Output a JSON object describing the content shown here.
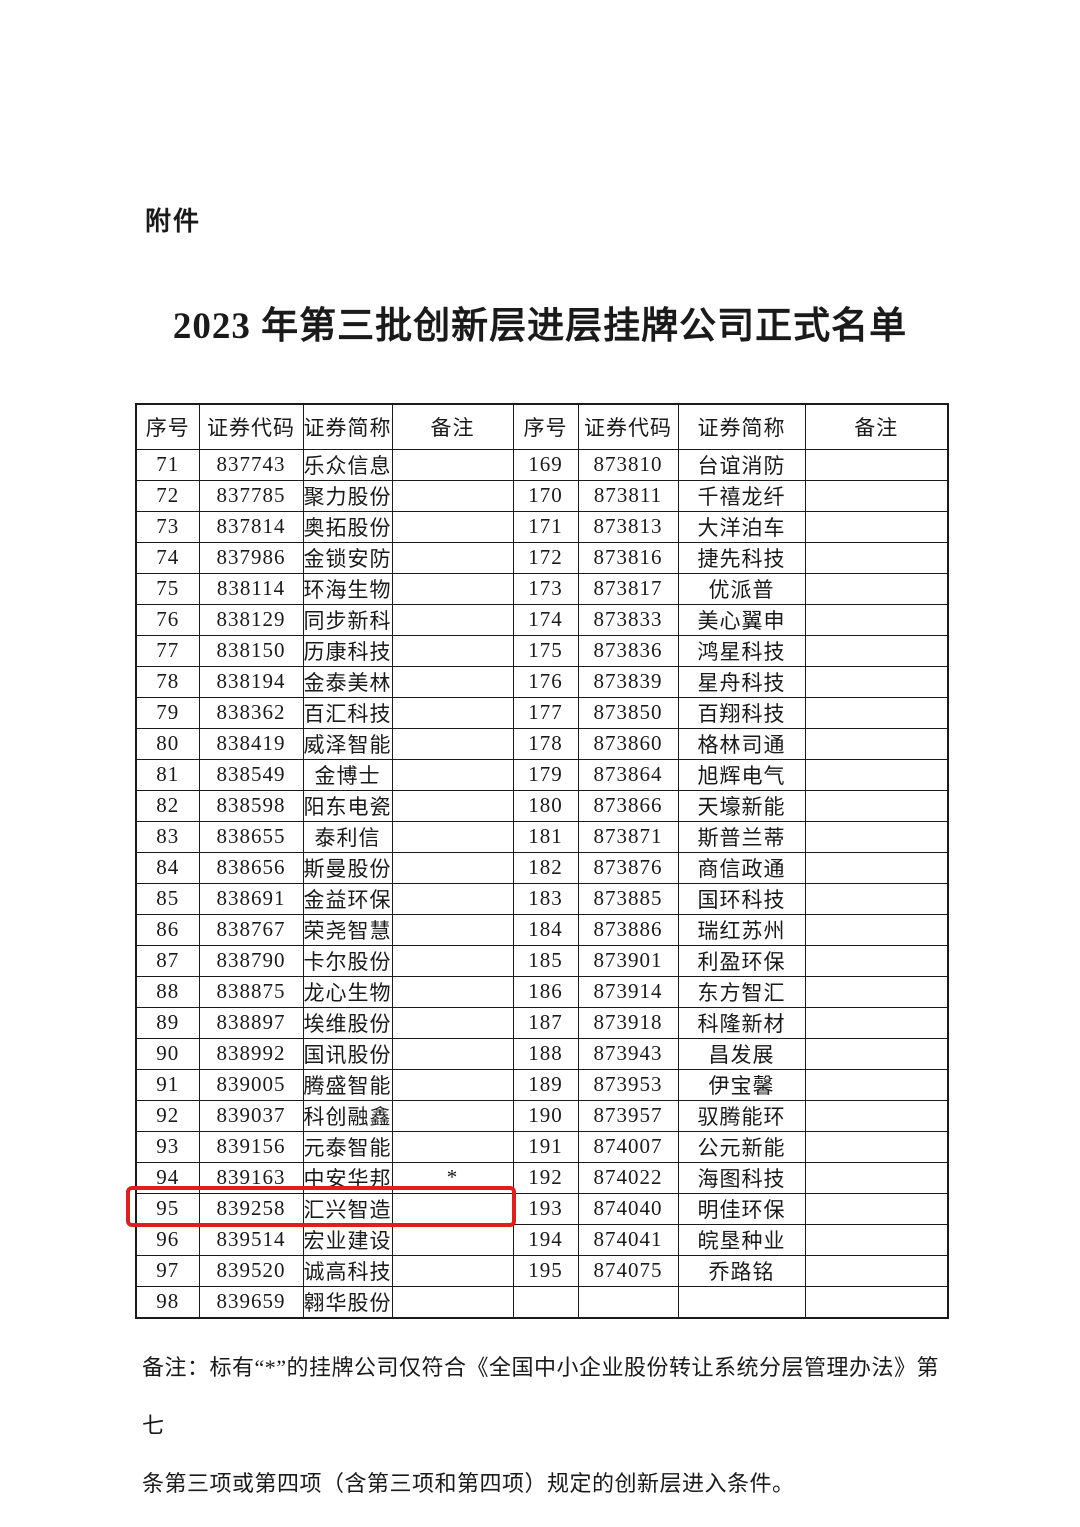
{
  "page": {
    "background": "#ffffff"
  },
  "header": {
    "attachment_label": "附件",
    "title": "2023 年第三批创新层进层挂牌公司正式名单"
  },
  "table": {
    "headers": [
      "序号",
      "证券代码",
      "证券简称",
      "备注",
      "序号",
      "证券代码",
      "证券简称",
      "备注"
    ],
    "rows": [
      [
        "71",
        "837743",
        "乐众信息",
        "",
        "169",
        "873810",
        "台谊消防",
        ""
      ],
      [
        "72",
        "837785",
        "聚力股份",
        "",
        "170",
        "873811",
        "千禧龙纤",
        ""
      ],
      [
        "73",
        "837814",
        "奥拓股份",
        "",
        "171",
        "873813",
        "大洋泊车",
        ""
      ],
      [
        "74",
        "837986",
        "金锁安防",
        "",
        "172",
        "873816",
        "捷先科技",
        ""
      ],
      [
        "75",
        "838114",
        "环海生物",
        "",
        "173",
        "873817",
        "优派普",
        ""
      ],
      [
        "76",
        "838129",
        "同步新科",
        "",
        "174",
        "873833",
        "美心翼申",
        ""
      ],
      [
        "77",
        "838150",
        "历康科技",
        "",
        "175",
        "873836",
        "鸿星科技",
        ""
      ],
      [
        "78",
        "838194",
        "金泰美林",
        "",
        "176",
        "873839",
        "星舟科技",
        ""
      ],
      [
        "79",
        "838362",
        "百汇科技",
        "",
        "177",
        "873850",
        "百翔科技",
        ""
      ],
      [
        "80",
        "838419",
        "威泽智能",
        "",
        "178",
        "873860",
        "格林司通",
        ""
      ],
      [
        "81",
        "838549",
        "金博士",
        "",
        "179",
        "873864",
        "旭辉电气",
        ""
      ],
      [
        "82",
        "838598",
        "阳东电瓷",
        "",
        "180",
        "873866",
        "天壕新能",
        ""
      ],
      [
        "83",
        "838655",
        "泰利信",
        "",
        "181",
        "873871",
        "斯普兰蒂",
        ""
      ],
      [
        "84",
        "838656",
        "斯曼股份",
        "",
        "182",
        "873876",
        "商信政通",
        ""
      ],
      [
        "85",
        "838691",
        "金益环保",
        "",
        "183",
        "873885",
        "国环科技",
        ""
      ],
      [
        "86",
        "838767",
        "荣尧智慧",
        "",
        "184",
        "873886",
        "瑞红苏州",
        ""
      ],
      [
        "87",
        "838790",
        "卡尔股份",
        "",
        "185",
        "873901",
        "利盈环保",
        ""
      ],
      [
        "88",
        "838875",
        "龙心生物",
        "",
        "186",
        "873914",
        "东方智汇",
        ""
      ],
      [
        "89",
        "838897",
        "埃维股份",
        "",
        "187",
        "873918",
        "科隆新材",
        ""
      ],
      [
        "90",
        "838992",
        "国讯股份",
        "",
        "188",
        "873943",
        "昌发展",
        ""
      ],
      [
        "91",
        "839005",
        "腾盛智能",
        "",
        "189",
        "873953",
        "伊宝馨",
        ""
      ],
      [
        "92",
        "839037",
        "科创融鑫",
        "",
        "190",
        "873957",
        "驭腾能环",
        ""
      ],
      [
        "93",
        "839156",
        "元泰智能",
        "",
        "191",
        "874007",
        "公元新能",
        ""
      ],
      [
        "94",
        "839163",
        "中安华邦",
        "*",
        "192",
        "874022",
        "海图科技",
        ""
      ],
      [
        "95",
        "839258",
        "汇兴智造",
        "",
        "193",
        "874040",
        "明佳环保",
        ""
      ],
      [
        "96",
        "839514",
        "宏业建设",
        "",
        "194",
        "874041",
        "皖垦种业",
        ""
      ],
      [
        "97",
        "839520",
        "诚高科技",
        "",
        "195",
        "874075",
        "乔路铭",
        ""
      ],
      [
        "98",
        "839659",
        "翱华股份",
        "",
        "",
        "",
        "",
        ""
      ]
    ]
  },
  "highlight": {
    "row_no": "95",
    "highlighted_code": "839258",
    "highlighted_name": "汇兴智造",
    "color": "#e11d1d"
  },
  "footnote": {
    "line1": "备注：标有“*”的挂牌公司仅符合《全国中小企业股份转让系统分层管理办法》第七",
    "line2": "条第三项或第四项（含第三项和第四项）规定的创新层进入条件。"
  }
}
